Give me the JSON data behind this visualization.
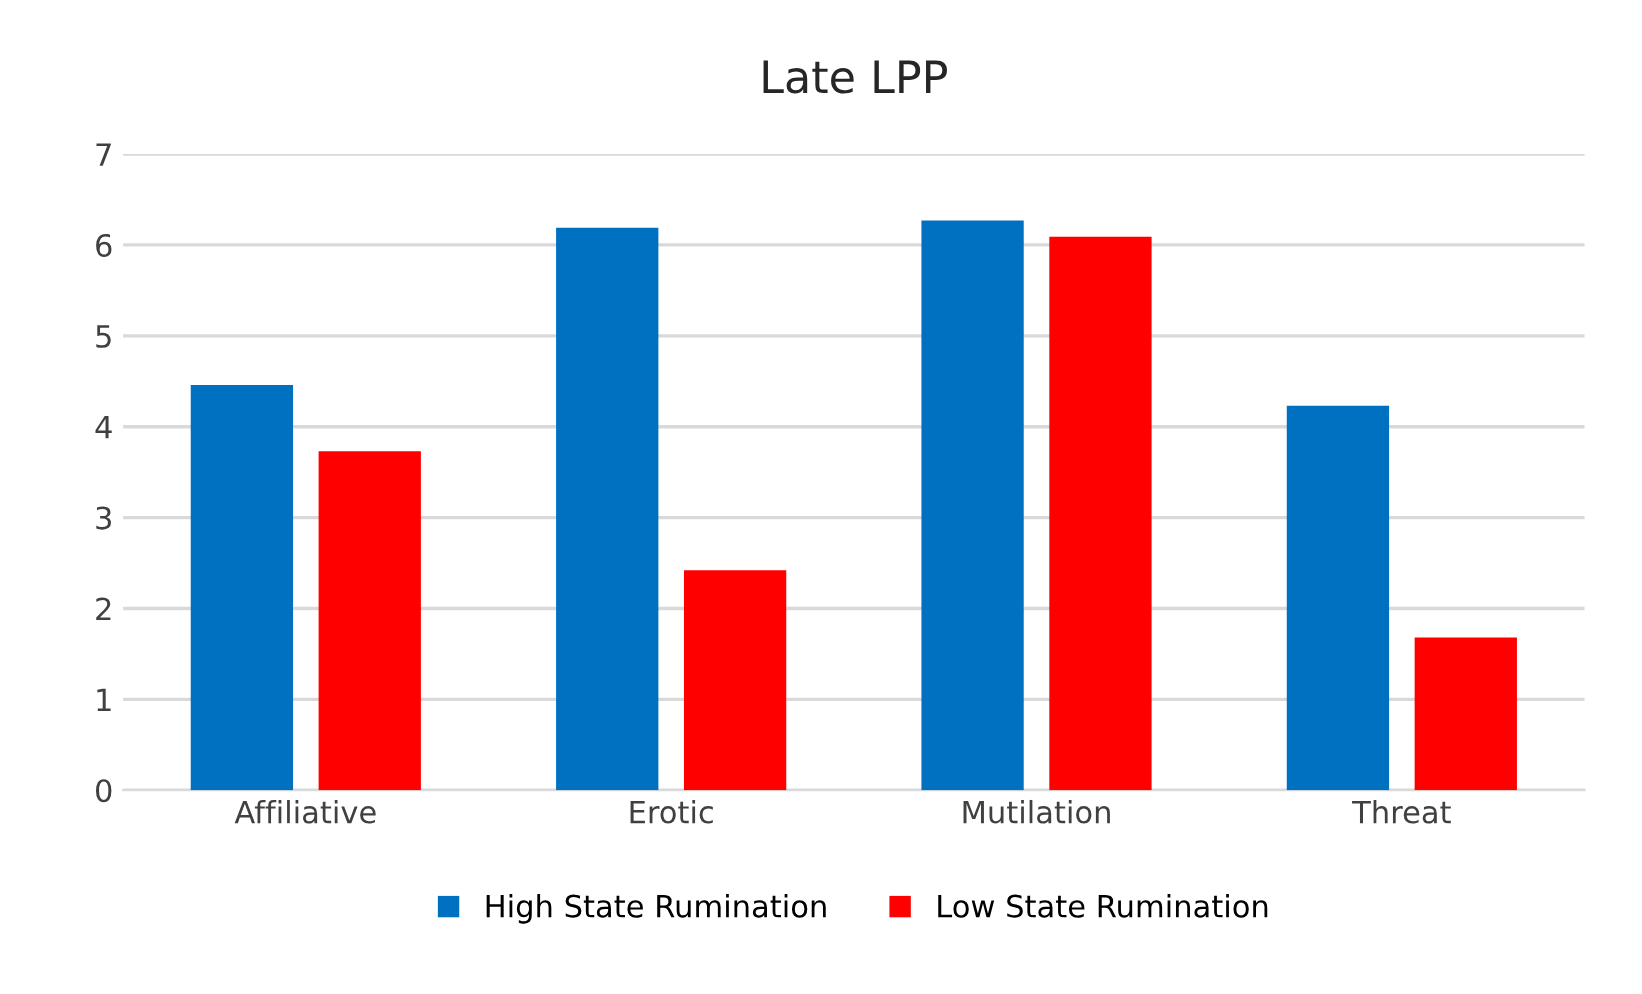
{
  "chart_data": {
    "type": "bar",
    "title": "Late LPP",
    "categories": [
      "Affiliative",
      "Erotic",
      "Mutilation",
      "Threat"
    ],
    "series": [
      {
        "name": "High State Rumination",
        "color": "#0070c0",
        "values": [
          4.46,
          6.19,
          6.27,
          4.23
        ]
      },
      {
        "name": "Low State Rumination",
        "color": "#ff0000",
        "values": [
          3.73,
          2.42,
          6.09,
          1.68
        ]
      }
    ],
    "ylim": [
      0,
      7
    ],
    "yticks": [
      0,
      1,
      2,
      3,
      4,
      5,
      6,
      7
    ],
    "grid": "y",
    "legend": "bottom"
  }
}
